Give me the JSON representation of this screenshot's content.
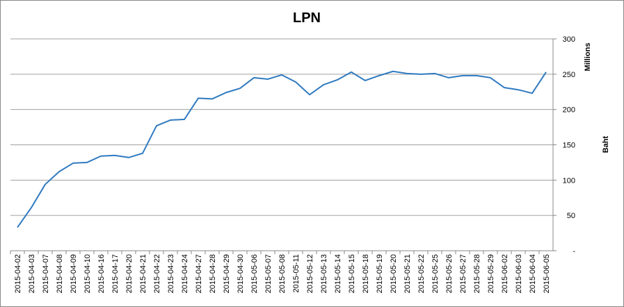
{
  "chart_data": {
    "type": "line",
    "title": "LPN",
    "y_axis_label": "Baht",
    "y_axis_unit": "Millions",
    "categories": [
      "2015-04-02",
      "2015-04-03",
      "2015-04-07",
      "2015-04-08",
      "2015-04-09",
      "2015-04-10",
      "2015-04-16",
      "2015-04-17",
      "2015-04-20",
      "2015-04-21",
      "2015-04-22",
      "2015-04-23",
      "2015-04-24",
      "2015-04-27",
      "2015-04-28",
      "2015-04-29",
      "2015-04-30",
      "2015-05-06",
      "2015-05-07",
      "2015-05-08",
      "2015-05-11",
      "2015-05-12",
      "2015-05-13",
      "2015-05-14",
      "2015-05-15",
      "2015-05-18",
      "2015-05-19",
      "2015-05-20",
      "2015-05-21",
      "2015-05-22",
      "2015-05-25",
      "2015-05-26",
      "2015-05-27",
      "2015-05-28",
      "2015-05-29",
      "2015-06-02",
      "2015-06-03",
      "2015-06-04",
      "2015-06-05"
    ],
    "values": [
      33,
      61,
      94,
      112,
      124,
      125,
      134,
      135,
      132,
      138,
      177,
      185,
      186,
      216,
      215,
      224,
      230,
      245,
      243,
      249,
      239,
      221,
      235,
      242,
      253,
      241,
      248,
      254,
      251,
      250,
      251,
      245,
      248,
      248,
      245,
      231,
      228,
      223,
      253
    ],
    "color": "#2f7ac0",
    "ylim": [
      0,
      300
    ],
    "yticks": [
      {
        "value": 0,
        "label": "-"
      },
      50,
      100,
      150,
      200,
      250,
      300
    ],
    "grid": true,
    "y_axis_side": "right"
  }
}
